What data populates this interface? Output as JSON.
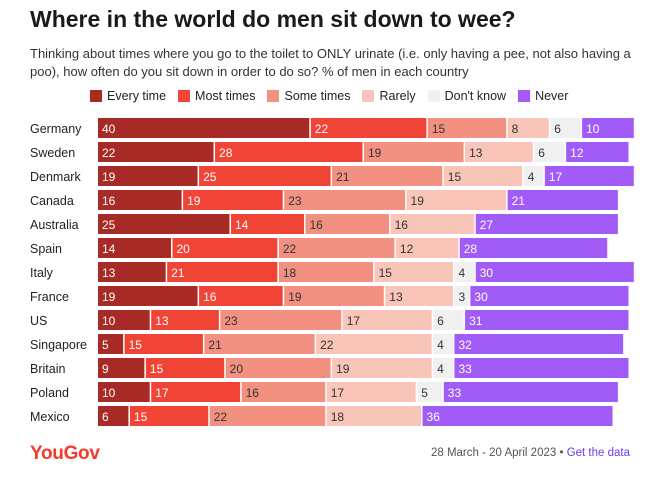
{
  "title": "Where in the world do men sit down to wee?",
  "subtitle": "Thinking about times where you go to the toilet to ONLY urinate (i.e. only having a pee, not also having a poo), how often do you sit down in order to do so? % of men in each country",
  "footer": {
    "brand": "YouGov",
    "date_range": "28 March - 20 April 2023",
    "separator": "•",
    "link_label": "Get the data"
  },
  "chart_data": {
    "type": "bar",
    "orientation": "horizontal",
    "stacked": true,
    "xlim": [
      0,
      100
    ],
    "grid": false,
    "legend_position": "top",
    "categories": [
      "Germany",
      "Sweden",
      "Denmark",
      "Canada",
      "Australia",
      "Spain",
      "Italy",
      "France",
      "US",
      "Singapore",
      "Britain",
      "Poland",
      "Mexico"
    ],
    "series": [
      {
        "name": "Every time",
        "color": "#a82a26",
        "label_color": "#ffffff",
        "values": [
          40,
          22,
          19,
          16,
          25,
          14,
          13,
          19,
          10,
          5,
          9,
          10,
          6
        ]
      },
      {
        "name": "Most times",
        "color": "#ef4436",
        "label_color": "#ffffff",
        "values": [
          22,
          28,
          25,
          19,
          14,
          20,
          21,
          16,
          13,
          15,
          15,
          17,
          15
        ]
      },
      {
        "name": "Some times",
        "color": "#f29182",
        "label_color": "#333333",
        "values": [
          15,
          19,
          21,
          23,
          16,
          22,
          18,
          19,
          23,
          21,
          20,
          16,
          22
        ]
      },
      {
        "name": "Rarely",
        "color": "#f8c5b8",
        "label_color": "#333333",
        "values": [
          8,
          13,
          15,
          19,
          16,
          12,
          15,
          13,
          17,
          22,
          19,
          17,
          18
        ]
      },
      {
        "name": "Don't know",
        "color": "#f0f0f0",
        "label_color": "#333333",
        "values": [
          6,
          6,
          4,
          0,
          0,
          0,
          4,
          3,
          6,
          4,
          4,
          5,
          0
        ]
      },
      {
        "name": "Never",
        "color": "#a15cf8",
        "label_color": "#ffffff",
        "values": [
          10,
          12,
          17,
          21,
          27,
          28,
          30,
          30,
          31,
          32,
          33,
          33,
          36
        ]
      }
    ]
  }
}
